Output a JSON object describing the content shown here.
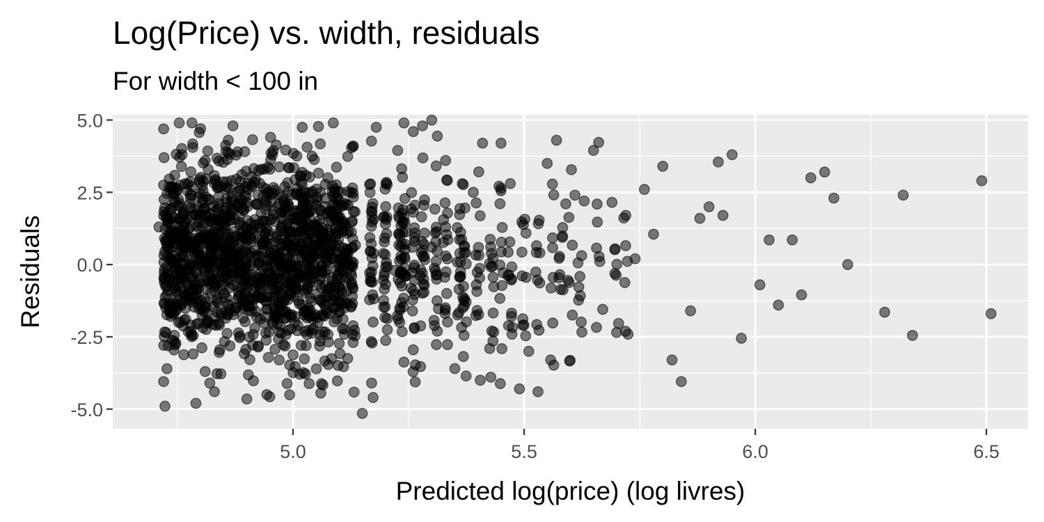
{
  "chart_data": {
    "type": "scatter",
    "title": "Log(Price) vs. width, residuals",
    "subtitle": "For width < 100 in",
    "xlabel": "Predicted log(price) (log livres)",
    "ylabel": "Residuals",
    "xlim": [
      4.61,
      6.59
    ],
    "ylim": [
      -5.68,
      5.18
    ],
    "x_ticks": [
      5.0,
      5.5,
      6.0,
      6.5
    ],
    "x_tick_labels": [
      "5.0",
      "5.5",
      "6.0",
      "6.5"
    ],
    "y_ticks": [
      -5.0,
      -2.5,
      0.0,
      2.5,
      5.0
    ],
    "y_tick_labels": [
      "-5.0",
      "-2.5",
      "0.0",
      "2.5",
      "5.0"
    ],
    "grid": true,
    "point_color": "#000000",
    "point_opacity": 0.5,
    "panel_background": "#ebebeb",
    "grid_color": "#ffffff",
    "dense_cloud": {
      "x_range": [
        4.72,
        5.12
      ],
      "y_mean": 0.2,
      "y_sd": 1.65,
      "approx_points": 1400
    },
    "series": [
      {
        "x": [
          4.71,
          4.72,
          4.72,
          4.73,
          4.73,
          4.74,
          4.76,
          4.78,
          4.79,
          4.8,
          4.81,
          4.81,
          4.82,
          4.83,
          4.85,
          4.86,
          4.87,
          4.88,
          4.88,
          4.9,
          4.92,
          4.95,
          4.97,
          5.02,
          5.06,
          5.09,
          5.13,
          5.15,
          5.17,
          5.18,
          5.2,
          5.22,
          5.24,
          5.26,
          5.28,
          5.3,
          5.3,
          5.33,
          5.35,
          5.37,
          5.37,
          5.39,
          5.41,
          5.43,
          5.45,
          5.47,
          5.49,
          5.51,
          5.53,
          5.55,
          5.57,
          5.59,
          5.61,
          5.63,
          5.65,
          5.67,
          5.69,
          5.7,
          5.72,
          5.74,
          5.76,
          5.78,
          5.8,
          5.82,
          5.84,
          5.86,
          5.88,
          5.9,
          5.92,
          5.93,
          5.95,
          5.97,
          6.01,
          6.03,
          6.05,
          6.08,
          6.1,
          6.12,
          6.15,
          6.17,
          6.2,
          6.28,
          6.32,
          6.34,
          6.49,
          6.51
        ],
        "y": [
          1.3,
          -4.05,
          2.75,
          -0.9,
          1.6,
          -1.5,
          3.8,
          2.4,
          -4.8,
          4.7,
          3.6,
          -3.7,
          -4.1,
          -4.4,
          0.6,
          4.3,
          4.8,
          -1.2,
          3.9,
          -4.65,
          2.1,
          3.3,
          -3.3,
          4.75,
          -4.45,
          2.5,
          4.1,
          -5.15,
          -4.1,
          4.75,
          1.4,
          -0.2,
          4.9,
          -2.95,
          4.8,
          5.0,
          0.6,
          3.6,
          -3.6,
          -2.45,
          0.4,
          2.5,
          4.2,
          -2.3,
          4.2,
          2.8,
          -4.3,
          -3.0,
          -4.4,
          3.5,
          4.3,
          2.1,
          2.4,
          2.2,
          3.95,
          -1.55,
          2.15,
          -2.35,
          1.7,
          0.2,
          2.6,
          1.05,
          3.4,
          -3.3,
          -4.05,
          -1.6,
          1.6,
          2.0,
          3.55,
          1.7,
          3.8,
          -2.55,
          -0.7,
          0.85,
          -1.4,
          0.85,
          -1.05,
          3.0,
          3.2,
          2.3,
          0.0,
          -1.65,
          2.4,
          -2.45,
          2.9,
          -1.7
        ]
      }
    ]
  }
}
